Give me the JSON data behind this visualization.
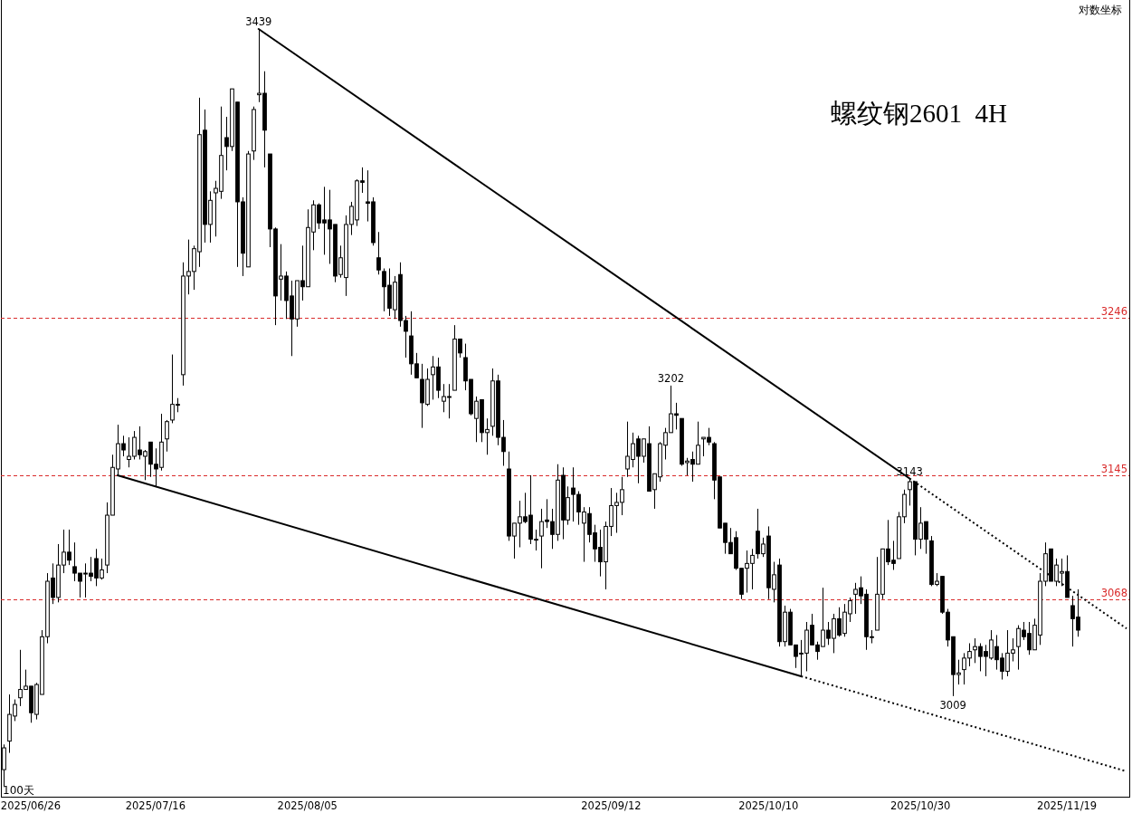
{
  "chart_data": {
    "type": "candlestick",
    "title": "螺纹钢2601  4H",
    "categories": [
      null,
      null,
      null,
      null,
      null,
      "2025/06/26",
      null,
      null,
      null,
      null,
      null,
      null,
      null,
      null,
      null,
      null,
      null,
      null,
      null,
      null,
      null,
      null,
      null,
      null,
      null,
      null,
      null,
      null,
      "2025/07/16",
      null,
      null,
      null,
      null,
      null,
      null,
      null,
      null,
      null,
      null,
      null,
      null,
      null,
      null,
      null,
      null,
      null,
      null,
      null,
      null,
      null,
      null,
      null,
      null,
      null,
      null,
      null,
      "2025/08/05",
      null,
      null,
      null,
      null,
      null,
      null,
      null,
      null,
      null,
      null,
      null,
      null,
      null,
      null,
      null,
      null,
      null,
      null,
      null,
      null,
      null,
      null,
      null,
      null,
      null,
      null,
      null,
      null,
      null,
      null,
      null,
      null,
      null,
      null,
      null,
      null,
      null,
      null,
      null,
      null,
      null,
      null,
      null,
      null,
      null,
      null,
      null,
      null,
      null,
      null,
      null,
      null,
      null,
      null,
      null,
      "2025/09/12",
      null,
      null,
      null,
      null,
      null,
      null,
      null,
      null,
      null,
      null,
      null,
      null,
      null,
      null,
      null,
      null,
      null,
      null,
      null,
      null,
      null,
      null,
      null,
      null,
      null,
      null,
      null,
      null,
      "2025/10/10",
      null,
      null,
      null,
      null,
      null,
      null,
      null,
      null,
      null,
      null,
      null,
      null,
      null,
      null,
      null,
      null,
      null,
      null,
      null,
      null,
      null,
      null,
      null,
      null,
      null,
      null,
      null,
      "2025/10/30",
      null,
      null,
      null,
      null,
      null,
      null,
      null,
      null,
      null,
      null,
      null,
      null,
      null,
      null,
      null,
      null,
      null,
      null,
      null,
      null,
      null,
      null,
      null,
      null,
      null,
      null,
      "2025/11/19",
      null,
      null,
      null,
      null,
      null,
      null,
      null,
      null,
      null,
      null,
      null
    ],
    "ohlc": [
      [
        2965,
        2980,
        2955,
        2978
      ],
      [
        2982,
        3010,
        2975,
        2998
      ],
      [
        2997,
        3007,
        2994,
        3004
      ],
      [
        3008,
        3037,
        3003,
        3013
      ],
      [
        3013,
        3025,
        3013,
        3015
      ],
      [
        3015,
        3015,
        2993,
        2999
      ],
      [
        2998,
        3017,
        2995,
        3016
      ],
      [
        3010,
        3049,
        3010,
        3045
      ],
      [
        3045,
        3084,
        3041,
        3079
      ],
      [
        3081,
        3090,
        3065,
        3069
      ],
      [
        3069,
        3102,
        3066,
        3089
      ],
      [
        3089,
        3111,
        3084,
        3097
      ],
      [
        3097,
        3111,
        3089,
        3092
      ],
      [
        3088,
        3103,
        3079,
        3084
      ],
      [
        3084,
        3084,
        3069,
        3079
      ],
      [
        3084,
        3090,
        3069,
        3084
      ],
      [
        3084,
        3094,
        3079,
        3082
      ],
      [
        3093,
        3099,
        3076,
        3081
      ],
      [
        3081,
        3093,
        3080,
        3086
      ],
      [
        3089,
        3128,
        3084,
        3120
      ],
      [
        3120,
        3158,
        3120,
        3150
      ],
      [
        3149,
        3177,
        3145,
        3165
      ],
      [
        3165,
        3170,
        3157,
        3161
      ],
      [
        3155,
        3169,
        3150,
        3157
      ],
      [
        3157,
        3173,
        3155,
        3169
      ],
      [
        3161,
        3176,
        3155,
        3158
      ],
      [
        3157,
        3161,
        3142,
        3160
      ],
      [
        3166,
        3166,
        3144,
        3152
      ],
      [
        3152,
        3162,
        3138,
        3149
      ],
      [
        3150,
        3184,
        3148,
        3166
      ],
      [
        3168,
        3180,
        3160,
        3179
      ],
      [
        3180,
        3222,
        3178,
        3190
      ],
      [
        3190,
        3194,
        3185,
        3190
      ],
      [
        3209,
        3282,
        3202,
        3273
      ],
      [
        3273,
        3297,
        3261,
        3276
      ],
      [
        3276,
        3293,
        3264,
        3291
      ],
      [
        3289,
        3392,
        3279,
        3367
      ],
      [
        3370,
        3384,
        3295,
        3307
      ],
      [
        3307,
        3329,
        3295,
        3323
      ],
      [
        3328,
        3336,
        3299,
        3331
      ],
      [
        3329,
        3386,
        3324,
        3353
      ],
      [
        3365,
        3379,
        3343,
        3359
      ],
      [
        3359,
        3398,
        3356,
        3398
      ],
      [
        3389,
        3389,
        3279,
        3322
      ],
      [
        3322,
        3325,
        3273,
        3288
      ],
      [
        3279,
        3356,
        3279,
        3354
      ],
      [
        3356,
        3386,
        3350,
        3384
      ],
      [
        3394,
        3439,
        3389,
        3395
      ],
      [
        3395,
        3410,
        3345,
        3370
      ],
      [
        3354,
        3354,
        3292,
        3304
      ],
      [
        3304,
        3305,
        3241,
        3260
      ],
      [
        3271,
        3294,
        3257,
        3273
      ],
      [
        3273,
        3276,
        3245,
        3257
      ],
      [
        3260,
        3270,
        3221,
        3245
      ],
      [
        3245,
        3270,
        3240,
        3270
      ],
      [
        3270,
        3293,
        3257,
        3266
      ],
      [
        3266,
        3317,
        3266,
        3305
      ],
      [
        3302,
        3323,
        3290,
        3320
      ],
      [
        3320,
        3321,
        3304,
        3308
      ],
      [
        3310,
        3332,
        3287,
        3308
      ],
      [
        3310,
        3330,
        3281,
        3304
      ],
      [
        3307,
        3307,
        3269,
        3273
      ],
      [
        3274,
        3293,
        3272,
        3285
      ],
      [
        3272,
        3313,
        3260,
        3307
      ],
      [
        3307,
        3322,
        3300,
        3319
      ],
      [
        3310,
        3337,
        3306,
        3336
      ],
      [
        3336,
        3345,
        3328,
        3335
      ],
      [
        3322,
        3343,
        3309,
        3321
      ],
      [
        3322,
        3325,
        3293,
        3295
      ],
      [
        3285,
        3302,
        3274,
        3277
      ],
      [
        3276,
        3278,
        3250,
        3266
      ],
      [
        3267,
        3278,
        3247,
        3252
      ],
      [
        3251,
        3273,
        3245,
        3269
      ],
      [
        3274,
        3282,
        3240,
        3244
      ],
      [
        3244,
        3247,
        3220,
        3237
      ],
      [
        3234,
        3250,
        3209,
        3216
      ],
      [
        3216,
        3223,
        3207,
        3207
      ],
      [
        3206,
        3216,
        3175,
        3191
      ],
      [
        3190,
        3213,
        3189,
        3206
      ],
      [
        3209,
        3221,
        3193,
        3214
      ],
      [
        3214,
        3220,
        3194,
        3199
      ],
      [
        3192,
        3203,
        3185,
        3195
      ],
      [
        3195,
        3203,
        3181,
        3195
      ],
      [
        3199,
        3241,
        3199,
        3232
      ],
      [
        3232,
        3232,
        3220,
        3223
      ],
      [
        3220,
        3229,
        3199,
        3205
      ],
      [
        3206,
        3206,
        3183,
        3184
      ],
      [
        3181,
        3195,
        3166,
        3192
      ],
      [
        3193,
        3193,
        3166,
        3172
      ],
      [
        3172,
        3181,
        3158,
        3174
      ],
      [
        3176,
        3213,
        3170,
        3205
      ],
      [
        3205,
        3209,
        3164,
        3169
      ],
      [
        3169,
        3180,
        3151,
        3160
      ],
      [
        3149,
        3160,
        3104,
        3107
      ],
      [
        3107,
        3115,
        3093,
        3115
      ],
      [
        3115,
        3129,
        3100,
        3119
      ],
      [
        3119,
        3134,
        3115,
        3116
      ],
      [
        3120,
        3145,
        3102,
        3105
      ],
      [
        3105,
        3111,
        3098,
        3105
      ],
      [
        3107,
        3124,
        3087,
        3116
      ],
      [
        3117,
        3130,
        3112,
        3116
      ],
      [
        3116,
        3124,
        3099,
        3108
      ],
      [
        3108,
        3152,
        3104,
        3142
      ],
      [
        3145,
        3150,
        3105,
        3117
      ],
      [
        3117,
        3138,
        3114,
        3131
      ],
      [
        3137,
        3150,
        3116,
        3133
      ],
      [
        3133,
        3135,
        3114,
        3122
      ],
      [
        3115,
        3125,
        3091,
        3122
      ],
      [
        3121,
        3125,
        3103,
        3108
      ],
      [
        3109,
        3114,
        3091,
        3099
      ],
      [
        3100,
        3111,
        3082,
        3091
      ],
      [
        3091,
        3116,
        3074,
        3113
      ],
      [
        3113,
        3137,
        3107,
        3126
      ],
      [
        3126,
        3134,
        3109,
        3128
      ],
      [
        3128,
        3144,
        3120,
        3136
      ],
      [
        3149,
        3179,
        3144,
        3157
      ],
      [
        3155,
        3172,
        3150,
        3165
      ],
      [
        3168,
        3170,
        3140,
        3157
      ],
      [
        3157,
        3168,
        3153,
        3168
      ],
      [
        3165,
        3176,
        3135,
        3135
      ],
      [
        3136,
        3146,
        3124,
        3146
      ],
      [
        3144,
        3166,
        3141,
        3165
      ],
      [
        3164,
        3175,
        3155,
        3172
      ],
      [
        3172,
        3202,
        3172,
        3184
      ],
      [
        3184,
        3191,
        3174,
        3183
      ],
      [
        3181,
        3181,
        3151,
        3152
      ],
      [
        3153,
        3156,
        3145,
        3154
      ],
      [
        3155,
        3160,
        3141,
        3152
      ],
      [
        3152,
        3179,
        3152,
        3164
      ],
      [
        3168,
        3169,
        3157,
        3169
      ],
      [
        3169,
        3175,
        3164,
        3166
      ],
      [
        3165,
        3166,
        3130,
        3142
      ],
      [
        3144,
        3144,
        3112,
        3112
      ],
      [
        3115,
        3115,
        3096,
        3103
      ],
      [
        3103,
        3112,
        3096,
        3096
      ],
      [
        3106,
        3110,
        3086,
        3087
      ],
      [
        3087,
        3087,
        3068,
        3071
      ],
      [
        3087,
        3098,
        3072,
        3090
      ],
      [
        3090,
        3099,
        3074,
        3095
      ],
      [
        3110,
        3124,
        3093,
        3096
      ],
      [
        3096,
        3106,
        3094,
        3102
      ],
      [
        3107,
        3113,
        3068,
        3075
      ],
      [
        3074,
        3091,
        3066,
        3083
      ],
      [
        3089,
        3093,
        3039,
        3042
      ],
      [
        3042,
        3064,
        3039,
        3060
      ],
      [
        3060,
        3062,
        3040,
        3040
      ],
      [
        3040,
        3040,
        3026,
        3033
      ],
      [
        3035,
        3043,
        3021,
        3035
      ],
      [
        3035,
        3054,
        3024,
        3049
      ],
      [
        3052,
        3059,
        3040,
        3040
      ],
      [
        3040,
        3042,
        3031,
        3036
      ],
      [
        3039,
        3075,
        3039,
        3049
      ],
      [
        3049,
        3054,
        3040,
        3044
      ],
      [
        3044,
        3059,
        3035,
        3056
      ],
      [
        3056,
        3063,
        3045,
        3046
      ],
      [
        3047,
        3065,
        3045,
        3060
      ],
      [
        3059,
        3069,
        3054,
        3067
      ],
      [
        3071,
        3078,
        3059,
        3074
      ],
      [
        3075,
        3082,
        3065,
        3070
      ],
      [
        3071,
        3074,
        3037,
        3045
      ],
      [
        3045,
        3049,
        3041,
        3045
      ],
      [
        3049,
        3094,
        3049,
        3071
      ],
      [
        3071,
        3099,
        3068,
        3099
      ],
      [
        3099,
        3117,
        3089,
        3091
      ],
      [
        3092,
        3104,
        3086,
        3090
      ],
      [
        3093,
        3122,
        3093,
        3119
      ],
      [
        3119,
        3136,
        3115,
        3133
      ],
      [
        3136,
        3143,
        3126,
        3141
      ],
      [
        3141,
        3141,
        3095,
        3105
      ],
      [
        3105,
        3125,
        3099,
        3115
      ],
      [
        3116,
        3116,
        3096,
        3105
      ],
      [
        3104,
        3107,
        3076,
        3077
      ],
      [
        3077,
        3084,
        3076,
        3079
      ],
      [
        3082,
        3082,
        3059,
        3060
      ],
      [
        3060,
        3062,
        3039,
        3043
      ],
      [
        3045,
        3045,
        3009,
        3022
      ],
      [
        3022,
        3031,
        3016,
        3023
      ],
      [
        3025,
        3035,
        3016,
        3032
      ],
      [
        3032,
        3041,
        3027,
        3036
      ],
      [
        3037,
        3044,
        3029,
        3039
      ],
      [
        3039,
        3041,
        3024,
        3033
      ],
      [
        3036,
        3040,
        3021,
        3033
      ],
      [
        3032,
        3049,
        3031,
        3043
      ],
      [
        3039,
        3046,
        3025,
        3031
      ],
      [
        3032,
        3035,
        3019,
        3024
      ],
      [
        3024,
        3049,
        3021,
        3035
      ],
      [
        3035,
        3044,
        3030,
        3037
      ],
      [
        3039,
        3052,
        3025,
        3050
      ],
      [
        3049,
        3054,
        3043,
        3045
      ],
      [
        3047,
        3054,
        3034,
        3037
      ],
      [
        3037,
        3056,
        3037,
        3052
      ],
      [
        3046,
        3084,
        3040,
        3079
      ],
      [
        3079,
        3103,
        3076,
        3096
      ],
      [
        3099,
        3099,
        3079,
        3079
      ],
      [
        3079,
        3093,
        3076,
        3089
      ],
      [
        3084,
        3093,
        3076,
        3085
      ],
      [
        3085,
        3095,
        3069,
        3069
      ],
      [
        3064,
        3070,
        3039,
        3056
      ],
      [
        3057,
        3074,
        3045,
        3049
      ],
      null,
      null,
      null,
      null,
      null,
      null,
      null,
      null,
      null
    ],
    "color": "#000000",
    "log": "y",
    "ylim": [
      2949,
      3459
    ],
    "tick_labels": "x",
    "series": [
      {
        "type": "line",
        "color": "#000000",
        "line_style": "solid",
        "values": [
          null,
          null,
          null,
          null,
          null,
          null,
          null,
          null,
          null,
          null,
          null,
          null,
          null,
          null,
          null,
          null,
          null,
          null,
          null,
          null,
          null,
          null,
          null,
          null,
          null,
          null,
          null,
          null,
          null,
          null,
          null,
          null,
          null,
          null,
          null,
          null,
          null,
          null,
          null,
          null,
          null,
          null,
          null,
          null,
          null,
          null,
          null,
          3439,
          null,
          null,
          null,
          null,
          null,
          null,
          null,
          null,
          null,
          null,
          null,
          null,
          null,
          null,
          null,
          null,
          null,
          null,
          null,
          null,
          null,
          null,
          null,
          null,
          null,
          null,
          null,
          null,
          null,
          null,
          null,
          null,
          null,
          null,
          null,
          null,
          null,
          null,
          null,
          null,
          null,
          null,
          null,
          null,
          null,
          null,
          null,
          null,
          null,
          null,
          null,
          null,
          null,
          null,
          null,
          null,
          null,
          null,
          null,
          null,
          null,
          null,
          null,
          null,
          null,
          null,
          null,
          null,
          null,
          null,
          null,
          null,
          null,
          null,
          null,
          null,
          null,
          null,
          null,
          null,
          null,
          null,
          null,
          null,
          null,
          null,
          null,
          null,
          null,
          null,
          null,
          null,
          null,
          null,
          null,
          null,
          null,
          null,
          null,
          null,
          null,
          null,
          null,
          null,
          null,
          null,
          null,
          null,
          null,
          null,
          null,
          null,
          null,
          null,
          null,
          null,
          null,
          null,
          null,
          3143,
          null,
          null,
          null,
          null,
          null,
          null,
          null,
          null,
          null,
          null,
          null,
          null,
          null,
          null,
          null,
          null,
          null,
          null,
          null,
          null,
          null,
          null,
          null,
          null,
          null,
          null,
          null,
          null,
          null,
          null,
          null,
          null,
          null,
          null,
          null,
          null,
          null,
          null,
          null,
          null
        ]
      },
      {
        "type": "line",
        "color": "#000000",
        "line_style": "dotted",
        "values": [
          null,
          null,
          null,
          null,
          null,
          null,
          null,
          null,
          null,
          null,
          null,
          null,
          null,
          null,
          null,
          null,
          null,
          null,
          null,
          null,
          null,
          null,
          null,
          null,
          null,
          null,
          null,
          null,
          null,
          null,
          null,
          null,
          null,
          null,
          null,
          null,
          null,
          null,
          null,
          null,
          null,
          null,
          null,
          null,
          null,
          null,
          null,
          null,
          null,
          null,
          null,
          null,
          null,
          null,
          null,
          null,
          null,
          null,
          null,
          null,
          null,
          null,
          null,
          null,
          null,
          null,
          null,
          null,
          null,
          null,
          null,
          null,
          null,
          null,
          null,
          null,
          null,
          null,
          null,
          null,
          null,
          null,
          null,
          null,
          null,
          null,
          null,
          null,
          null,
          null,
          null,
          null,
          null,
          null,
          null,
          null,
          null,
          null,
          null,
          null,
          null,
          null,
          null,
          null,
          null,
          null,
          null,
          null,
          null,
          null,
          null,
          null,
          null,
          null,
          null,
          null,
          null,
          null,
          null,
          null,
          null,
          null,
          null,
          null,
          null,
          null,
          null,
          null,
          null,
          null,
          null,
          null,
          null,
          null,
          null,
          null,
          null,
          null,
          null,
          null,
          null,
          null,
          null,
          null,
          null,
          null,
          null,
          null,
          null,
          null,
          null,
          null,
          null,
          null,
          null,
          null,
          null,
          null,
          null,
          null,
          null,
          null,
          null,
          null,
          null,
          null,
          null,
          3143,
          null,
          null,
          null,
          null,
          null,
          null,
          null,
          null,
          null,
          null,
          null,
          null,
          null,
          null,
          null,
          null,
          null,
          null,
          null,
          null,
          null,
          null,
          null,
          null,
          null,
          null,
          null,
          null,
          null,
          null,
          null,
          null,
          null,
          null,
          null,
          null,
          null,
          null,
          null,
          3050
        ]
      },
      {
        "type": "line",
        "color": "#000000",
        "line_style": "solid",
        "values": [
          null,
          null,
          null,
          null,
          null,
          null,
          null,
          null,
          null,
          null,
          null,
          null,
          null,
          null,
          null,
          null,
          null,
          null,
          null,
          null,
          null,
          3145,
          null,
          null,
          null,
          null,
          null,
          null,
          null,
          null,
          null,
          null,
          null,
          null,
          null,
          null,
          null,
          null,
          null,
          null,
          null,
          null,
          null,
          null,
          null,
          null,
          null,
          null,
          null,
          null,
          null,
          null,
          null,
          null,
          null,
          null,
          null,
          null,
          null,
          null,
          null,
          null,
          null,
          null,
          null,
          null,
          null,
          null,
          null,
          null,
          null,
          null,
          null,
          null,
          null,
          null,
          null,
          null,
          null,
          null,
          null,
          null,
          null,
          null,
          null,
          null,
          null,
          null,
          null,
          null,
          null,
          null,
          null,
          null,
          null,
          null,
          null,
          null,
          null,
          null,
          null,
          null,
          null,
          null,
          null,
          null,
          null,
          null,
          null,
          null,
          null,
          null,
          null,
          null,
          null,
          null,
          null,
          null,
          null,
          null,
          null,
          null,
          null,
          null,
          null,
          null,
          null,
          null,
          null,
          null,
          null,
          null,
          null,
          null,
          null,
          null,
          null,
          null,
          null,
          null,
          null,
          null,
          null,
          null,
          null,
          null,
          null,
          3021,
          null,
          null,
          null,
          null,
          null,
          null,
          null,
          null,
          null,
          null,
          null,
          null,
          null,
          null,
          null,
          null,
          null,
          null,
          null,
          null,
          null,
          null,
          null,
          null,
          null,
          null,
          null,
          null,
          null,
          null,
          null,
          null,
          null,
          null,
          null,
          null,
          null,
          null,
          null,
          null,
          null,
          null,
          null,
          null,
          null,
          null,
          null,
          null,
          null,
          null,
          null,
          null,
          null,
          null,
          null,
          null,
          null,
          null,
          null,
          null
        ]
      },
      {
        "type": "line",
        "color": "#000000",
        "line_style": "dotted",
        "values": [
          null,
          null,
          null,
          null,
          null,
          null,
          null,
          null,
          null,
          null,
          null,
          null,
          null,
          null,
          null,
          null,
          null,
          null,
          null,
          null,
          null,
          null,
          null,
          null,
          null,
          null,
          null,
          null,
          null,
          null,
          null,
          null,
          null,
          null,
          null,
          null,
          null,
          null,
          null,
          null,
          null,
          null,
          null,
          null,
          null,
          null,
          null,
          null,
          null,
          null,
          null,
          null,
          null,
          null,
          null,
          null,
          null,
          null,
          null,
          null,
          null,
          null,
          null,
          null,
          null,
          null,
          null,
          null,
          null,
          null,
          null,
          null,
          null,
          null,
          null,
          null,
          null,
          null,
          null,
          null,
          null,
          null,
          null,
          null,
          null,
          null,
          null,
          null,
          null,
          null,
          null,
          null,
          null,
          null,
          null,
          null,
          null,
          null,
          null,
          null,
          null,
          null,
          null,
          null,
          null,
          null,
          null,
          null,
          null,
          null,
          null,
          null,
          null,
          null,
          null,
          null,
          null,
          null,
          null,
          null,
          null,
          null,
          null,
          null,
          null,
          null,
          null,
          null,
          null,
          null,
          null,
          null,
          null,
          null,
          null,
          null,
          null,
          null,
          null,
          null,
          null,
          null,
          null,
          null,
          null,
          null,
          null,
          3021,
          null,
          null,
          null,
          null,
          null,
          null,
          null,
          null,
          null,
          null,
          null,
          null,
          null,
          null,
          null,
          null,
          null,
          null,
          null,
          null,
          null,
          null,
          null,
          null,
          null,
          null,
          null,
          null,
          null,
          null,
          null,
          null,
          null,
          null,
          null,
          null,
          null,
          null,
          null,
          null,
          null,
          null,
          null,
          null,
          null,
          null,
          null,
          null,
          null,
          null,
          null,
          null,
          null,
          null,
          null,
          null,
          null,
          null,
          null,
          2964
        ]
      }
    ],
    "ref_lines": [
      {
        "axis": "y",
        "value": 3246,
        "label": "3246",
        "color": "#d92b2b",
        "line_style": "dashed"
      },
      {
        "axis": "y",
        "value": 3145,
        "label": "3145",
        "color": "#d92b2b",
        "line_style": "dashed"
      },
      {
        "axis": "y",
        "value": 3068,
        "label": "3068",
        "color": "#d92b2b",
        "line_style": "dashed"
      }
    ],
    "annotations": [
      {
        "text": "3439",
        "y": 3439
      },
      {
        "text": "3202",
        "y": 3202
      },
      {
        "text": "3143",
        "y": 3143
      },
      {
        "text": "3009",
        "y": 3009
      },
      "对数坐标",
      "100天"
    ]
  }
}
